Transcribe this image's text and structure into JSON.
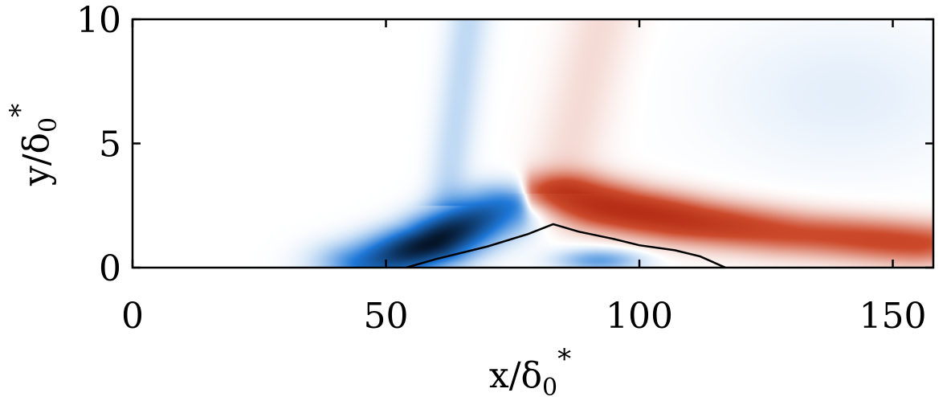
{
  "chart_data": {
    "type": "heatmap",
    "title": "",
    "xlabel": {
      "base": "x/δ",
      "sub": "0",
      "sup": "*"
    },
    "ylabel": {
      "base": "y/δ",
      "sub": "0",
      "sup": "*"
    },
    "xlim": [
      0,
      158
    ],
    "ylim": [
      0,
      10
    ],
    "xticks": [
      0,
      50,
      100,
      150
    ],
    "yticks": [
      0,
      5,
      10
    ],
    "grid": false,
    "colormap": {
      "negative": "#083a8a",
      "mid_negative": "#1f78d8",
      "light_negative": "#d6e8fa",
      "zero": "#ffffff",
      "light_positive": "#f8e2dc",
      "mid_positive": "#c43a1c",
      "positive": "#a11a05"
    },
    "features": [
      {
        "name": "negative-core",
        "sign": "negative",
        "peak": 1.0,
        "center": [
          59,
          1.0
        ],
        "description_points": [
          [
            45,
            0.2
          ],
          [
            59,
            1.0
          ],
          [
            75,
            2.5
          ]
        ]
      },
      {
        "name": "negative-bump-interior",
        "sign": "negative",
        "peak": 0.35,
        "center": [
          93,
          0.4
        ]
      },
      {
        "name": "positive-core",
        "sign": "positive",
        "peak": 0.9,
        "center": [
          95,
          2.0
        ],
        "description_points": [
          [
            85,
            2.9
          ],
          [
            110,
            1.9
          ],
          [
            155,
            1.0
          ]
        ]
      },
      {
        "name": "negative-wave-band",
        "sign": "negative",
        "peak": 0.15,
        "from": [
          62,
          3
        ],
        "to": [
          68,
          10
        ]
      },
      {
        "name": "positive-wave-band",
        "sign": "positive",
        "peak": 0.1,
        "from": [
          80,
          3.5
        ],
        "to": [
          96,
          10
        ]
      },
      {
        "name": "upper-right-light-negative",
        "sign": "negative",
        "peak": 0.06,
        "from": [
          110,
          3
        ],
        "to": [
          158,
          10
        ]
      }
    ],
    "contour": {
      "color": "#000000",
      "points": [
        [
          54,
          0
        ],
        [
          60,
          0.35
        ],
        [
          70,
          0.85
        ],
        [
          78,
          1.35
        ],
        [
          83,
          1.75
        ],
        [
          88,
          1.45
        ],
        [
          95,
          1.15
        ],
        [
          100,
          0.9
        ],
        [
          107,
          0.7
        ],
        [
          112,
          0.45
        ],
        [
          117,
          0
        ]
      ]
    }
  }
}
